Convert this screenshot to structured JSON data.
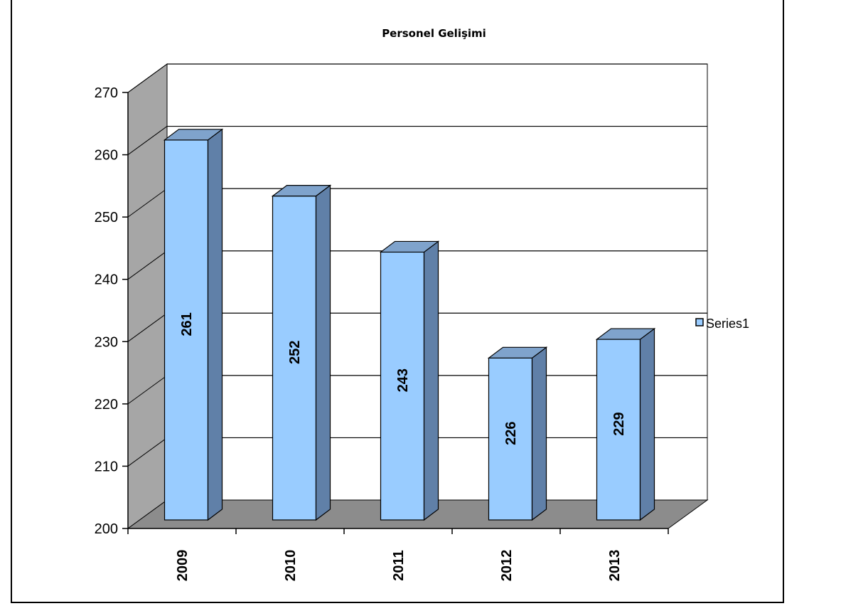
{
  "chart_data": {
    "type": "bar",
    "title": "Personel Gelişimi",
    "categories": [
      "2009",
      "2010",
      "2011",
      "2012",
      "2013"
    ],
    "series": [
      {
        "name": "Series1",
        "values": [
          261,
          252,
          243,
          226,
          229
        ]
      }
    ],
    "ylim": [
      200,
      270
    ],
    "y_ticks": [
      "200",
      "210",
      "220",
      "230",
      "240",
      "250",
      "260",
      "270"
    ],
    "xlabel": "",
    "ylabel": "",
    "grid": true,
    "legend": "right",
    "style": "3d-column",
    "colors": {
      "bar_front": "#99ccff",
      "bar_side": "#6080a8",
      "bar_top": "#7fa3cc",
      "side_wall": "#a6a6a6",
      "floor": "#8c8c8c",
      "back_wall": "#ffffff"
    }
  }
}
